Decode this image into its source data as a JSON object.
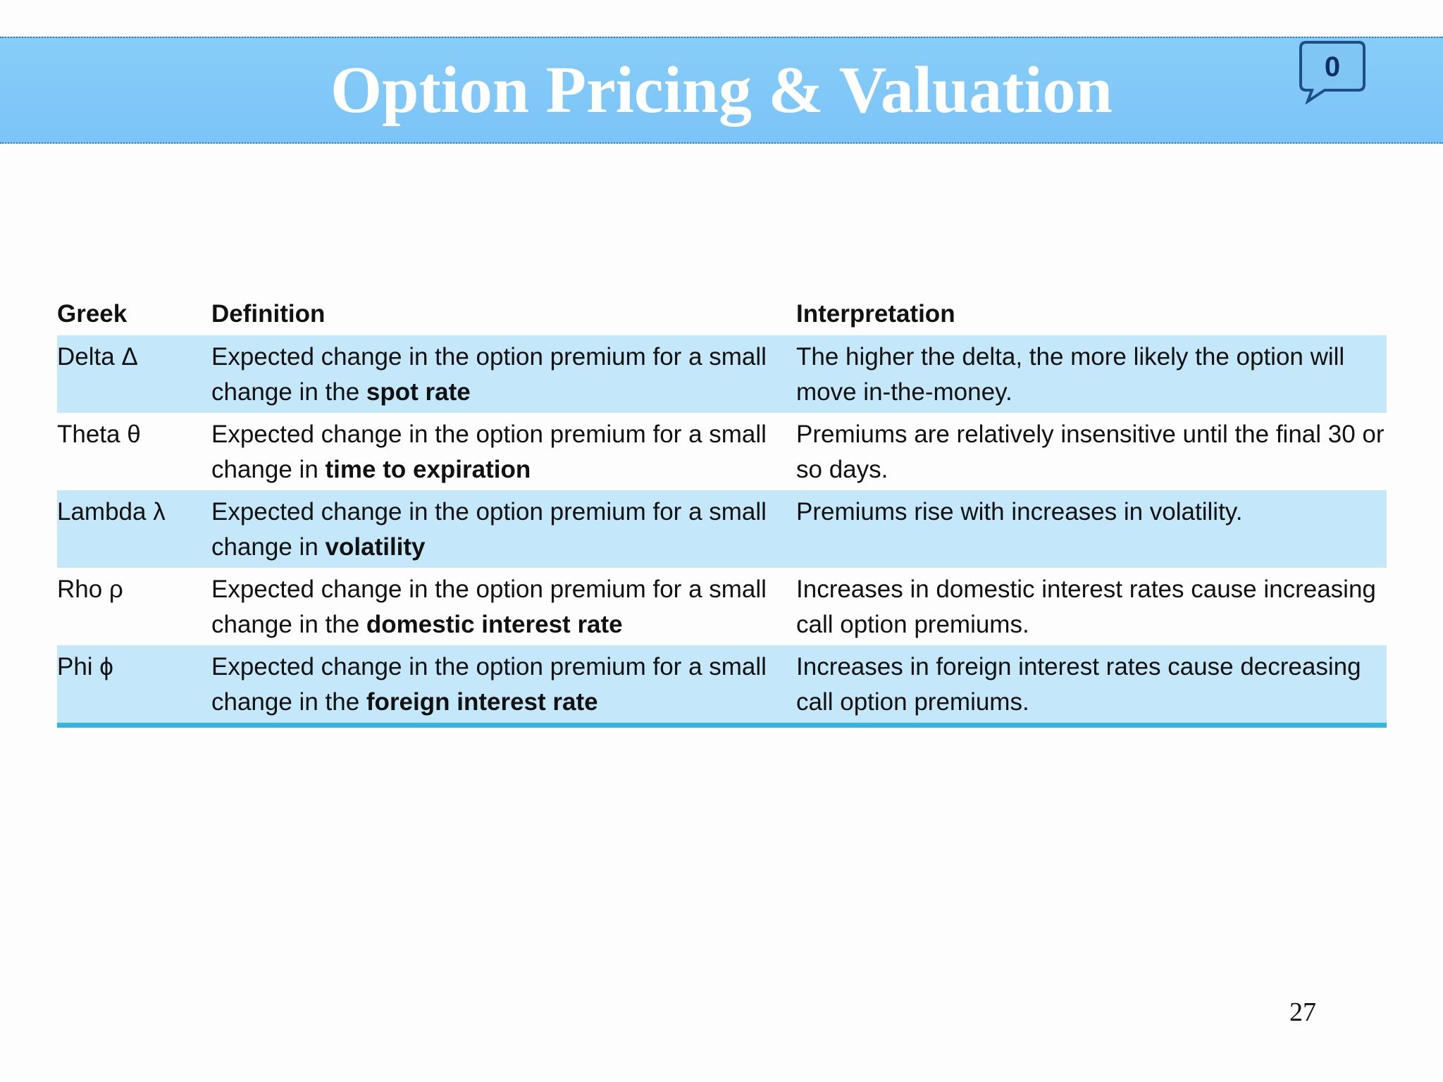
{
  "header": {
    "title": "Option Pricing & Valuation",
    "comment_badge": "0"
  },
  "table": {
    "columns": [
      "Greek",
      "Definition",
      "Interpretation"
    ],
    "rows": [
      {
        "greek": "Delta Δ",
        "definition": {
          "lead": "Expected change in the option premium for a small change in the ",
          "emphasis": "spot rate"
        },
        "interpretation": "The higher the delta, the more likely the option will move in-the-money."
      },
      {
        "greek": "Theta θ",
        "definition": {
          "lead": "Expected change in the option premium for a small change in ",
          "emphasis": "time to expiration"
        },
        "interpretation": "Premiums are relatively insensitive until the final 30 or so days."
      },
      {
        "greek": "Lambda λ",
        "definition": {
          "lead": "Expected change in the option premium for a small change in ",
          "emphasis": "volatility"
        },
        "interpretation": "Premiums rise with increases in volatility."
      },
      {
        "greek": "Rho ρ",
        "definition": {
          "lead": "Expected change in the option premium for a small change in the ",
          "emphasis": "domestic interest rate"
        },
        "interpretation": "Increases in domestic interest rates cause increasing call option premiums."
      },
      {
        "greek": "Phi ϕ",
        "definition": {
          "lead": "Expected change in the option premium for a small change in the ",
          "emphasis": "foreign interest rate"
        },
        "interpretation": "Increases in foreign interest rates cause decreasing call option premiums."
      }
    ]
  },
  "footer": {
    "page_number": "27"
  }
}
